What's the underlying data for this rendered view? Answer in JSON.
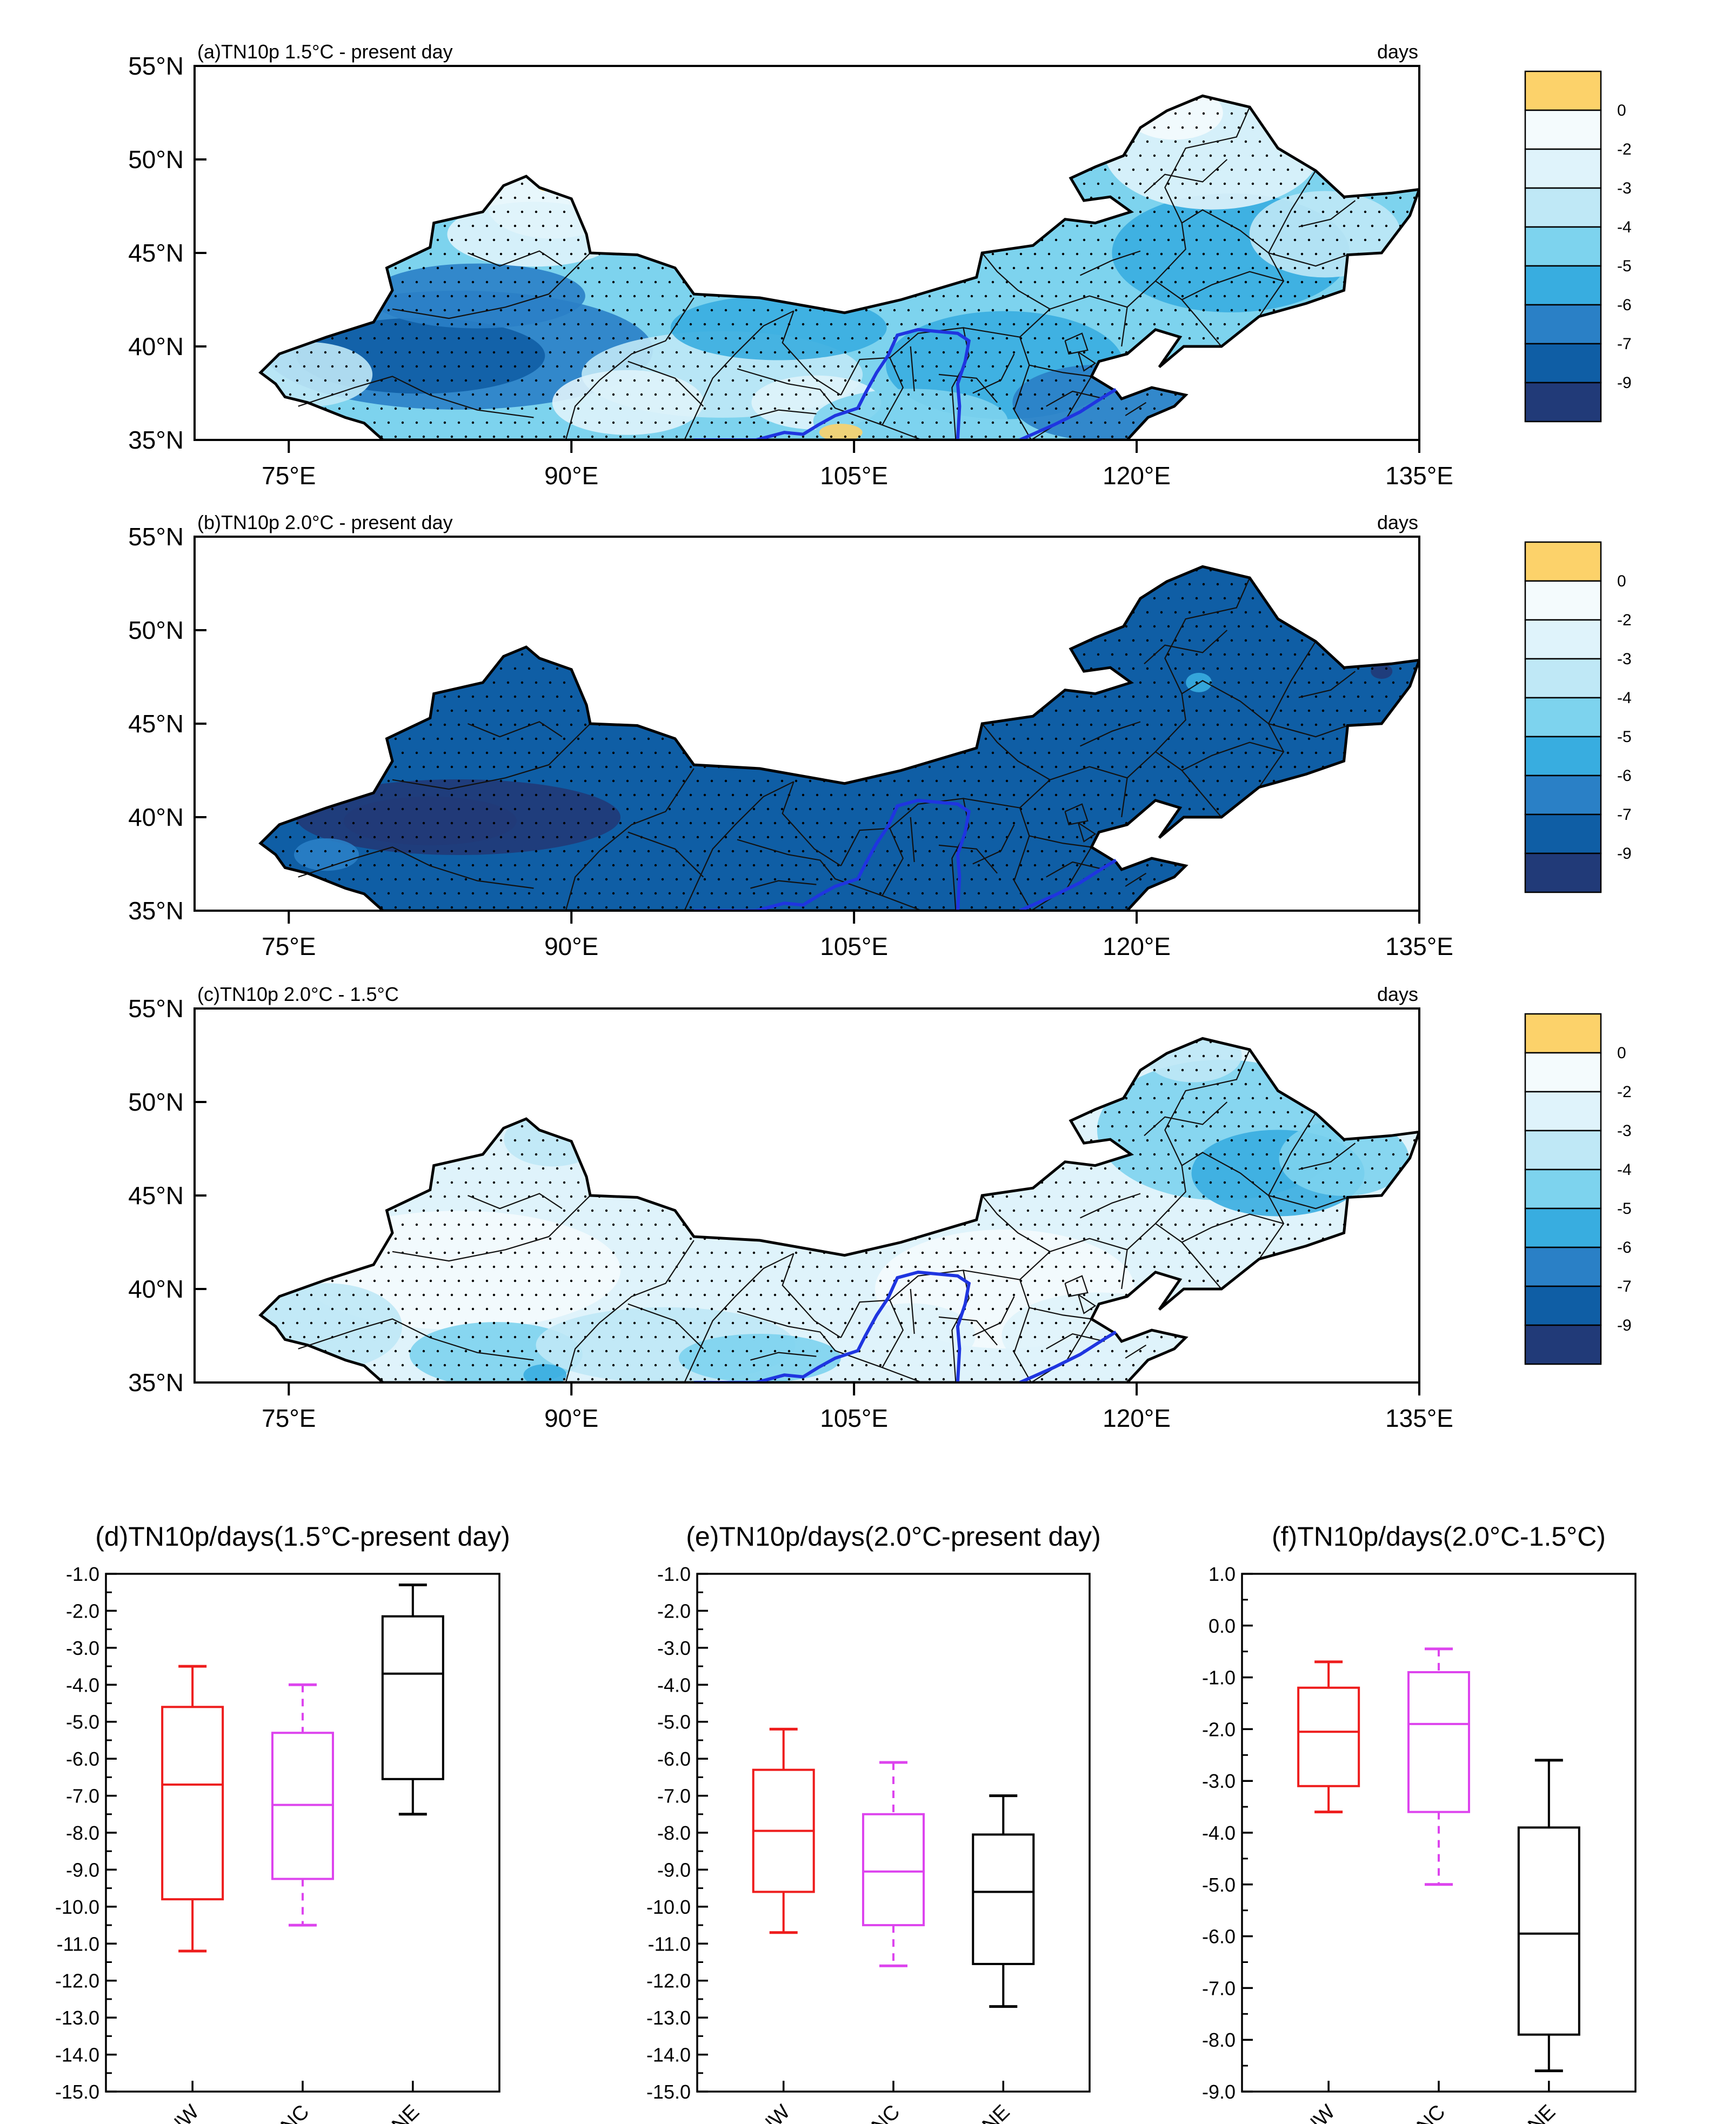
{
  "figure": {
    "map_panels": [
      {
        "id": "a",
        "title": "(a)TN10p 1.5°C - present day",
        "units": "days",
        "pattern": "moderate"
      },
      {
        "id": "b",
        "title": "(b)TN10p 2.0°C - present day",
        "units": "days",
        "pattern": "strong"
      },
      {
        "id": "c",
        "title": "(c)TN10p 2.0°C - 1.5°C",
        "units": "days",
        "pattern": "weak"
      }
    ],
    "map_axes": {
      "lat_labels": [
        "55°N",
        "50°N",
        "45°N",
        "40°N",
        "35°N"
      ],
      "lat_values": [
        55,
        50,
        45,
        40,
        35
      ],
      "lon_labels": [
        "75°E",
        "90°E",
        "105°E",
        "120°E",
        "135°E"
      ],
      "lon_values": [
        75,
        90,
        105,
        120,
        135
      ],
      "lon_range": [
        70,
        135
      ],
      "lat_range": [
        35,
        55
      ]
    },
    "colorbar": {
      "labels": [
        "0",
        "-2",
        "-3",
        "-4",
        "-5",
        "-6",
        "-7",
        "-9"
      ],
      "colors": [
        "#fcd26a",
        "#f4fbfd",
        "#dff3fb",
        "#bfe8f6",
        "#7dd3ee",
        "#38ade0",
        "#2a80c6",
        "#0f5ea5",
        "#213a78"
      ]
    },
    "colors": {
      "NW": "#ee1c1c",
      "NC": "#dd44ee",
      "NE": "#000000",
      "border_blue": "#1f35e0"
    }
  },
  "chart_data": [
    {
      "type": "box",
      "title": "(d)TN10p/days(1.5°C-present day)",
      "categories": [
        "NW",
        "NC",
        "NE"
      ],
      "ylim": [
        -15.0,
        -1.0
      ],
      "yticks": [
        "-1.0",
        "-2.0",
        "-3.0",
        "-4.0",
        "-5.0",
        "-6.0",
        "-7.0",
        "-8.0",
        "-9.0",
        "-10.0",
        "-11.0",
        "-12.0",
        "-13.0",
        "-14.0",
        "-15.0"
      ],
      "ytick_values": [
        -1,
        -2,
        -3,
        -4,
        -5,
        -6,
        -7,
        -8,
        -9,
        -10,
        -11,
        -12,
        -13,
        -14,
        -15
      ],
      "boxes": [
        {
          "name": "NW",
          "min": -11.2,
          "q1": -9.8,
          "median": -6.7,
          "q3": -4.6,
          "max": -3.5
        },
        {
          "name": "NC",
          "min": -10.5,
          "q1": -9.25,
          "median": -7.25,
          "q3": -5.3,
          "max": -4.0
        },
        {
          "name": "NE",
          "min": -7.5,
          "q1": -6.55,
          "median": -3.7,
          "q3": -2.15,
          "max": -1.3
        }
      ]
    },
    {
      "type": "box",
      "title": "(e)TN10p/days(2.0°C-present day)",
      "categories": [
        "NW",
        "NC",
        "NE"
      ],
      "ylim": [
        -15.0,
        -1.0
      ],
      "yticks": [
        "-1.0",
        "-2.0",
        "-3.0",
        "-4.0",
        "-5.0",
        "-6.0",
        "-7.0",
        "-8.0",
        "-9.0",
        "-10.0",
        "-11.0",
        "-12.0",
        "-13.0",
        "-14.0",
        "-15.0"
      ],
      "ytick_values": [
        -1,
        -2,
        -3,
        -4,
        -5,
        -6,
        -7,
        -8,
        -9,
        -10,
        -11,
        -12,
        -13,
        -14,
        -15
      ],
      "boxes": [
        {
          "name": "NW",
          "min": -10.7,
          "q1": -9.6,
          "median": -7.95,
          "q3": -6.3,
          "max": -5.2
        },
        {
          "name": "NC",
          "min": -11.6,
          "q1": -10.5,
          "median": -9.05,
          "q3": -7.5,
          "max": -6.1
        },
        {
          "name": "NE",
          "min": -12.7,
          "q1": -11.55,
          "median": -9.6,
          "q3": -8.05,
          "max": -7.0
        }
      ]
    },
    {
      "type": "box",
      "title": "(f)TN10p/days(2.0°C-1.5°C)",
      "categories": [
        "NW",
        "NC",
        "NE"
      ],
      "ylim": [
        -9.0,
        1.0
      ],
      "yticks": [
        "1.0",
        "0.0",
        "-1.0",
        "-2.0",
        "-3.0",
        "-4.0",
        "-5.0",
        "-6.0",
        "-7.0",
        "-8.0",
        "-9.0"
      ],
      "ytick_values": [
        1,
        0,
        -1,
        -2,
        -3,
        -4,
        -5,
        -6,
        -7,
        -8,
        -9
      ],
      "boxes": [
        {
          "name": "NW",
          "min": -3.6,
          "q1": -3.1,
          "median": -2.05,
          "q3": -1.2,
          "max": -0.7
        },
        {
          "name": "NC",
          "min": -5.0,
          "q1": -3.6,
          "median": -1.9,
          "q3": -0.9,
          "max": -0.45
        },
        {
          "name": "NE",
          "min": -8.6,
          "q1": -7.9,
          "median": -5.95,
          "q3": -3.9,
          "max": -2.6
        }
      ]
    }
  ]
}
